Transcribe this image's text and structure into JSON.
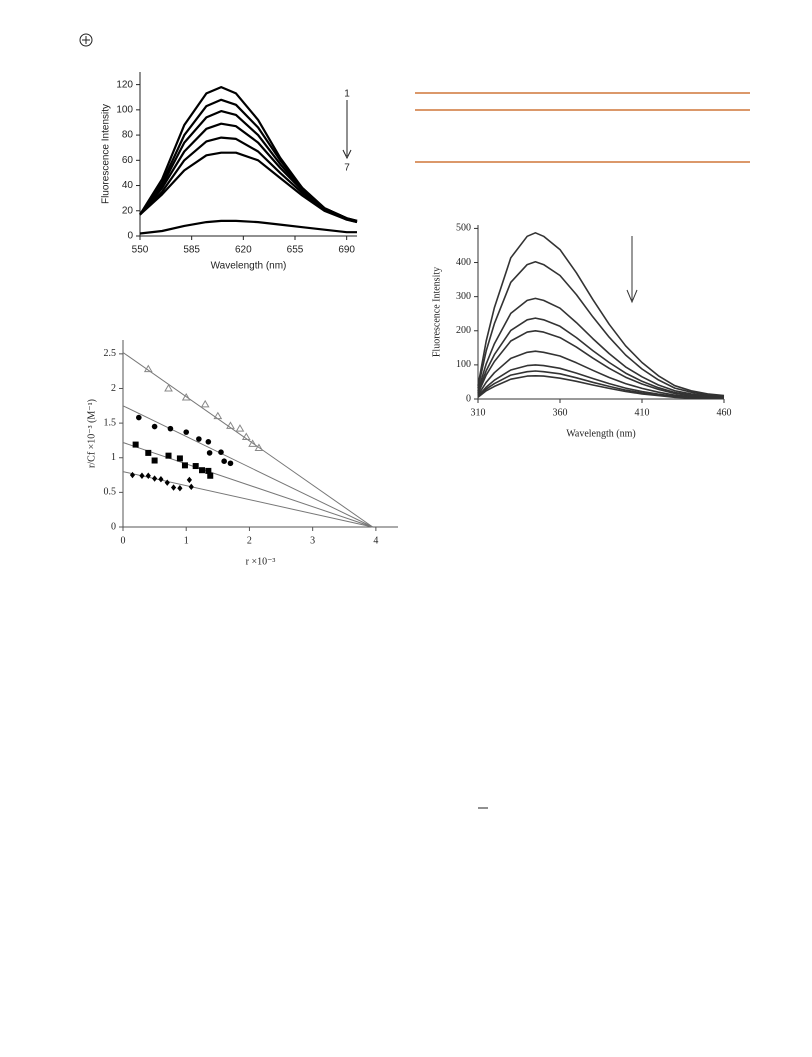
{
  "chart_data": [
    {
      "type": "line",
      "font": "sans",
      "xlabel": "Wavelength (nm)",
      "ylabel": "Fluorescence Intensity",
      "x": [
        550,
        565,
        580,
        595,
        605,
        615,
        630,
        645,
        660,
        675,
        690,
        697
      ],
      "xlim": [
        550,
        697
      ],
      "xticks": [
        550,
        585,
        620,
        655,
        690
      ],
      "ylim": [
        0,
        130
      ],
      "yticks": [
        0,
        20,
        40,
        60,
        80,
        100,
        120
      ],
      "grid": false,
      "annotations": [
        "1",
        "7"
      ],
      "series": [
        {
          "color": "#000000",
          "values": [
            17,
            45,
            88,
            113,
            118,
            113,
            92,
            62,
            38,
            22,
            14,
            12
          ]
        },
        {
          "color": "#000000",
          "values": [
            17,
            42,
            80,
            103,
            108,
            104,
            86,
            60,
            38,
            22,
            14,
            12
          ]
        },
        {
          "color": "#000000",
          "values": [
            17,
            40,
            74,
            94,
            99,
            96,
            80,
            57,
            37,
            22,
            14,
            12
          ]
        },
        {
          "color": "#000000",
          "values": [
            17,
            38,
            67,
            85,
            89,
            87,
            74,
            54,
            36,
            22,
            14,
            12
          ]
        },
        {
          "color": "#000000",
          "values": [
            17,
            35,
            60,
            75,
            78,
            77,
            67,
            50,
            34,
            21,
            13,
            11
          ]
        },
        {
          "color": "#000000",
          "values": [
            17,
            33,
            52,
            64,
            66,
            66,
            60,
            46,
            32,
            20,
            13,
            11
          ]
        },
        {
          "color": "#000000",
          "values": [
            2,
            4,
            8,
            11,
            12,
            12,
            11,
            9,
            7,
            5,
            3,
            3
          ]
        }
      ]
    },
    {
      "type": "line",
      "font": "serif",
      "xlabel": "Wavelength (nm)",
      "ylabel": "Fluorescence Intensity",
      "x": [
        310,
        315,
        320,
        330,
        340,
        345,
        350,
        360,
        370,
        380,
        390,
        400,
        410,
        420,
        430,
        440,
        450,
        460
      ],
      "xlim": [
        310,
        460
      ],
      "xticks": [
        310,
        360,
        410,
        460
      ],
      "ylim": [
        0,
        510
      ],
      "yticks": [
        0,
        100,
        200,
        300,
        400,
        500
      ],
      "grid": false,
      "series": [
        {
          "color": "#333333",
          "values": [
            39,
            170,
            268,
            414,
            477,
            487,
            477,
            438,
            370,
            292,
            219,
            156,
            107,
            68,
            39,
            24,
            15,
            10
          ]
        },
        {
          "color": "#333333",
          "values": [
            32,
            141,
            221,
            342,
            394,
            402,
            394,
            362,
            306,
            241,
            181,
            129,
            88,
            56,
            32,
            20,
            12,
            8
          ]
        },
        {
          "color": "#333333",
          "values": [
            24,
            103,
            162,
            251,
            289,
            295,
            289,
            266,
            224,
            177,
            133,
            94,
            65,
            41,
            24,
            15,
            9,
            6
          ]
        },
        {
          "color": "#333333",
          "values": [
            19,
            83,
            130,
            201,
            232,
            237,
            232,
            213,
            180,
            142,
            107,
            76,
            52,
            33,
            19,
            12,
            7,
            5
          ]
        },
        {
          "color": "#333333",
          "values": [
            16,
            70,
            110,
            170,
            196,
            200,
            196,
            180,
            152,
            120,
            90,
            64,
            44,
            28,
            16,
            10,
            6,
            4
          ]
        },
        {
          "color": "#333333",
          "values": [
            11,
            49,
            77,
            119,
            137,
            140,
            137,
            126,
            106,
            84,
            63,
            45,
            31,
            20,
            11,
            7,
            4,
            3
          ]
        },
        {
          "color": "#333333",
          "values": [
            8,
            35,
            55,
            85,
            98,
            100,
            98,
            90,
            76,
            60,
            45,
            32,
            22,
            14,
            8,
            5,
            3,
            2
          ]
        },
        {
          "color": "#333333",
          "values": [
            7,
            29,
            45,
            70,
            80,
            82,
            80,
            74,
            62,
            49,
            37,
            26,
            18,
            11,
            7,
            4,
            2,
            2
          ]
        },
        {
          "color": "#333333",
          "values": [
            5,
            24,
            37,
            58,
            67,
            68,
            67,
            61,
            52,
            41,
            31,
            22,
            15,
            10,
            5,
            3,
            2,
            1
          ]
        }
      ]
    },
    {
      "type": "scatter",
      "font": "serif",
      "xlabel": "r ×10⁻³",
      "ylabel": "r/Cf ×10⁻³ (M⁻¹)",
      "xlim": [
        0,
        4.35
      ],
      "xticks": [
        0,
        1,
        2,
        3,
        4
      ],
      "ylim": [
        0,
        2.7
      ],
      "yticks": [
        0,
        0.5,
        1,
        1.5,
        2,
        2.5
      ],
      "grid": false,
      "series": [
        {
          "marker": "triangle",
          "color": "#888888",
          "x": [
            0.4,
            0.72,
            1.0,
            1.3,
            1.5,
            1.7,
            1.85,
            1.95,
            2.05,
            2.15
          ],
          "values": [
            2.28,
            2.0,
            1.87,
            1.77,
            1.6,
            1.46,
            1.42,
            1.3,
            1.2,
            1.14
          ]
        },
        {
          "marker": "circle",
          "color": "#000000",
          "x": [
            0.25,
            0.5,
            0.75,
            1.0,
            1.2,
            1.35,
            1.37,
            1.55,
            1.6,
            1.7
          ],
          "values": [
            1.58,
            1.45,
            1.42,
            1.37,
            1.27,
            1.23,
            1.07,
            1.08,
            0.95,
            0.92
          ]
        },
        {
          "marker": "square",
          "color": "#000000",
          "x": [
            0.2,
            0.4,
            0.5,
            0.72,
            0.9,
            0.98,
            1.15,
            1.25,
            1.35,
            1.38
          ],
          "values": [
            1.19,
            1.07,
            0.96,
            1.03,
            0.99,
            0.89,
            0.88,
            0.82,
            0.81,
            0.74
          ]
        },
        {
          "marker": "diamond",
          "color": "#000000",
          "x": [
            0.15,
            0.3,
            0.4,
            0.5,
            0.6,
            0.7,
            0.8,
            0.9,
            1.05,
            1.08
          ],
          "values": [
            0.75,
            0.74,
            0.74,
            0.7,
            0.69,
            0.64,
            0.57,
            0.56,
            0.68,
            0.58
          ]
        }
      ],
      "fit_lines": [
        {
          "color": "#777777",
          "x": [
            0,
            3.95
          ],
          "values": [
            2.52,
            0
          ]
        },
        {
          "color": "#777777",
          "x": [
            0,
            3.95
          ],
          "values": [
            1.75,
            0
          ]
        },
        {
          "color": "#777777",
          "x": [
            0,
            3.95
          ],
          "values": [
            1.22,
            0
          ]
        },
        {
          "color": "#777777",
          "x": [
            0,
            3.95
          ],
          "values": [
            0.8,
            0
          ]
        }
      ]
    }
  ]
}
